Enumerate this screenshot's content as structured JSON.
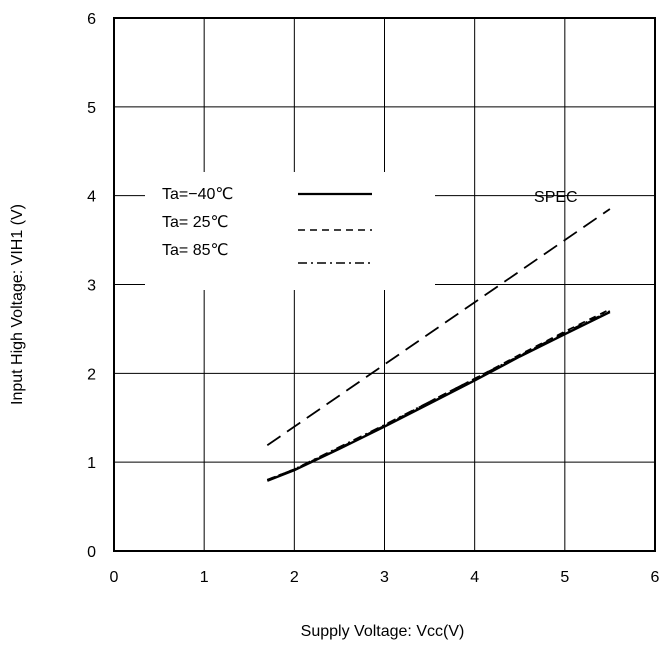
{
  "chart_data": {
    "type": "line",
    "title": "",
    "xlabel": "Supply Voltage: Vcc(V)",
    "ylabel": "Input High Voltage: VIH1 (V)",
    "xlim": [
      0,
      6
    ],
    "ylim": [
      0,
      6
    ],
    "xticks": [
      "0",
      "1",
      "2",
      "3",
      "4",
      "5",
      "6"
    ],
    "yticks": [
      "0",
      "1",
      "2",
      "3",
      "4",
      "5",
      "6"
    ],
    "grid": true,
    "legend_placement": "upper-left",
    "series": [
      {
        "name": "Ta=−40℃",
        "style": "solid",
        "x": [
          1.7,
          2.0,
          2.5,
          3.0,
          3.5,
          4.0,
          4.5,
          5.0,
          5.5
        ],
        "y": [
          0.79,
          0.91,
          1.15,
          1.4,
          1.66,
          1.92,
          2.19,
          2.44,
          2.69
        ]
      },
      {
        "name": "Ta= 25℃",
        "style": "dashed",
        "x": [
          1.7,
          2.0,
          2.5,
          3.0,
          3.5,
          4.0,
          4.5,
          5.0,
          5.5
        ],
        "y": [
          0.8,
          0.92,
          1.16,
          1.41,
          1.68,
          1.94,
          2.21,
          2.47,
          2.72
        ]
      },
      {
        "name": "Ta= 85℃",
        "style": "dashdot",
        "x": [
          1.7,
          2.0,
          2.5,
          3.0,
          3.5,
          4.0,
          4.5,
          5.0,
          5.5
        ],
        "y": [
          0.8,
          0.92,
          1.17,
          1.42,
          1.68,
          1.94,
          2.2,
          2.46,
          2.7
        ]
      },
      {
        "name": "SPEC",
        "style": "longdash",
        "x": [
          1.7,
          5.5
        ],
        "y": [
          1.19,
          3.85
        ]
      }
    ],
    "annotations": [
      {
        "text": "SPEC",
        "x": 4.9,
        "y": 3.93
      }
    ]
  }
}
